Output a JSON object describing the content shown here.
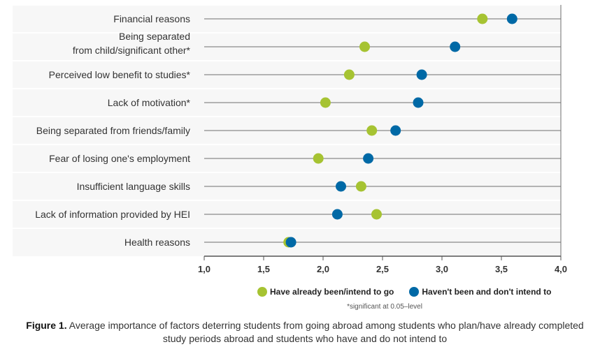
{
  "chart_data": {
    "type": "dot",
    "title": "",
    "xlim": [
      1.0,
      4.0
    ],
    "x_ticks": [
      "1,0",
      "1,5",
      "2,0",
      "2,5",
      "3,0",
      "3,5",
      "4,0"
    ],
    "x_tick_values": [
      1.0,
      1.5,
      2.0,
      2.5,
      3.0,
      3.5,
      4.0
    ],
    "categories": [
      {
        "label_lines": [
          "Financial reasons"
        ]
      },
      {
        "label_lines": [
          "Being separated",
          "from child/significant other*"
        ]
      },
      {
        "label_lines": [
          "Perceived low benefit to studies*"
        ]
      },
      {
        "label_lines": [
          "Lack of motivation*"
        ]
      },
      {
        "label_lines": [
          "Being separated from friends/family"
        ]
      },
      {
        "label_lines": [
          "Fear of losing one's employment"
        ]
      },
      {
        "label_lines": [
          "Insufficient language skills"
        ]
      },
      {
        "label_lines": [
          "Lack of information provided by HEI"
        ]
      },
      {
        "label_lines": [
          "Health reasons"
        ]
      }
    ],
    "series": [
      {
        "name": "Have already been/intend to go",
        "color": "#a6c332",
        "values": [
          3.34,
          2.35,
          2.22,
          2.02,
          2.41,
          1.96,
          2.32,
          2.45,
          1.71
        ]
      },
      {
        "name": "Haven't been and don't intend to",
        "color": "#0069a6",
        "values": [
          3.59,
          3.11,
          2.83,
          2.8,
          2.61,
          2.38,
          2.15,
          2.12,
          1.73
        ]
      }
    ],
    "draw_order": [
      [
        "green",
        "blue"
      ],
      [
        "green",
        "blue"
      ],
      [
        "green",
        "blue"
      ],
      [
        "green",
        "blue"
      ],
      [
        "green",
        "blue"
      ],
      [
        "green",
        "blue"
      ],
      [
        "blue",
        "green"
      ],
      [
        "blue",
        "green"
      ],
      [
        "green",
        "blue"
      ]
    ]
  },
  "legend": {
    "item1": "Have already been/intend to go",
    "item2": "Haven't been and don't intend to",
    "color1": "#a6c332",
    "color2": "#0069a6"
  },
  "note": "*significant at 0.05–level",
  "caption": {
    "label": "Figure 1.",
    "text": "Average importance of factors deterring students from going abroad among students who plan/have already completed study periods abroad and students who have and do not intend to"
  }
}
